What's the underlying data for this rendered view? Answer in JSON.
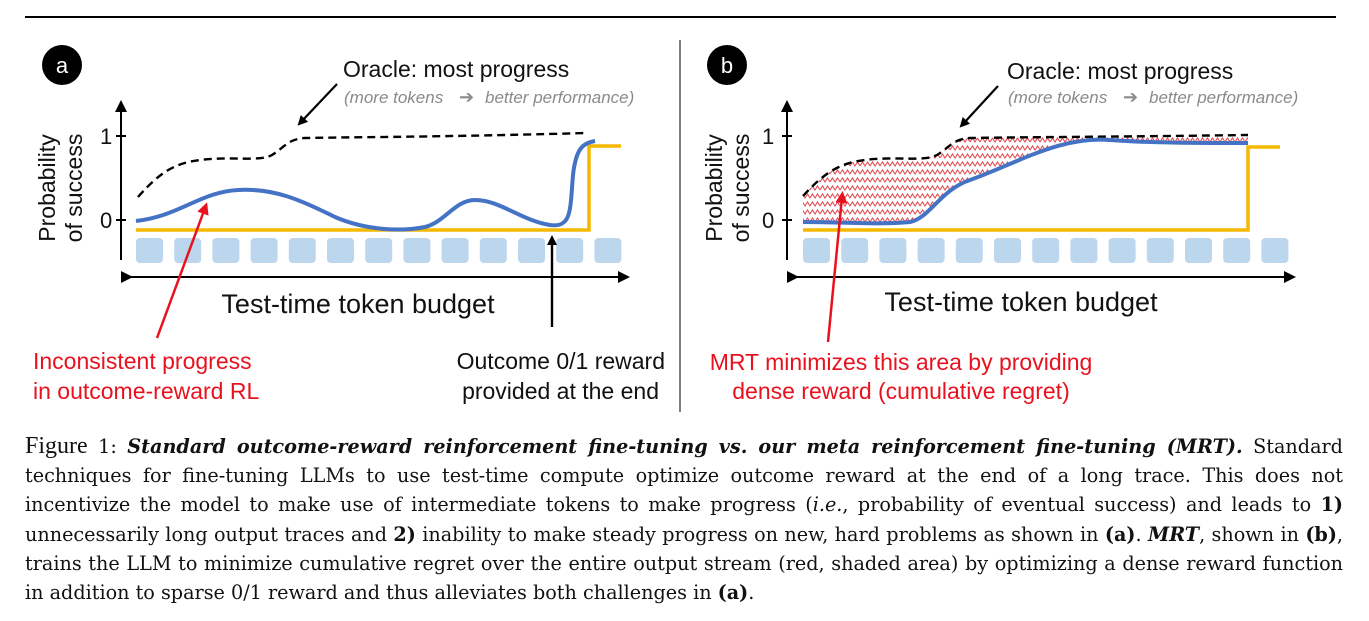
{
  "panel_a": {
    "badge": "a",
    "oracle_title": "Oracle: most progress",
    "oracle_note_left": "(more tokens",
    "oracle_note_right": "better performance)",
    "ylabel_line1": "Probability",
    "ylabel_line2": "of success",
    "tick_1": "1",
    "tick_0": "0",
    "xlabel": "Test-time token budget",
    "annotation_left_line1": "Inconsistent progress",
    "annotation_left_line2": "in outcome-reward RL",
    "annotation_right_line1": "Outcome 0/1 reward",
    "annotation_right_line2": "provided at the end"
  },
  "panel_b": {
    "badge": "b",
    "oracle_title": "Oracle: most progress",
    "oracle_note_left": "(more tokens",
    "oracle_note_right": "better performance)",
    "ylabel_line1": "Probability",
    "ylabel_line2": "of success",
    "tick_1": "1",
    "tick_0": "0",
    "xlabel": "Test-time token budget",
    "annotation_line1": "MRT minimizes this area by providing",
    "annotation_line2": "dense reward (cumulative regret)"
  },
  "colors": {
    "policy_curve": "#4472c4",
    "reward_line": "#f5b800",
    "annotation_red": "#e8121f",
    "token_block": "#bcd6ee",
    "oracle": "#000000"
  },
  "caption": {
    "figure_word": "Figure",
    "figure_number": "1:",
    "title": "Standard outcome-reward reinforcement fine-tuning vs. our meta reinforcement fine-tuning (MRT).",
    "text_1": " Standard techniques for fine-tuning LLMs to use test-time compute optimize outcome reward at the end of a long trace. This does not incentivize the model to make use of intermediate tokens to make progress (",
    "ie": "i.e.",
    "text_2": ", probability of eventual success) and leads to ",
    "one": "1)",
    "text_3": " unnecessarily long output traces and ",
    "two": "2)",
    "text_4": " inability to make steady progress on new, hard problems as shown in ",
    "ref_a1": "(a)",
    "text_5": ". ",
    "mrt": "MRT",
    "text_6": ", shown in ",
    "ref_b": "(b)",
    "text_7": ", trains the LLM to minimize cumulative regret over the entire output stream (red, shaded area) by optimizing a dense reward function in addition to sparse 0/1 reward and thus alleviates both challenges in ",
    "ref_a2": "(a)",
    "text_8": "."
  }
}
